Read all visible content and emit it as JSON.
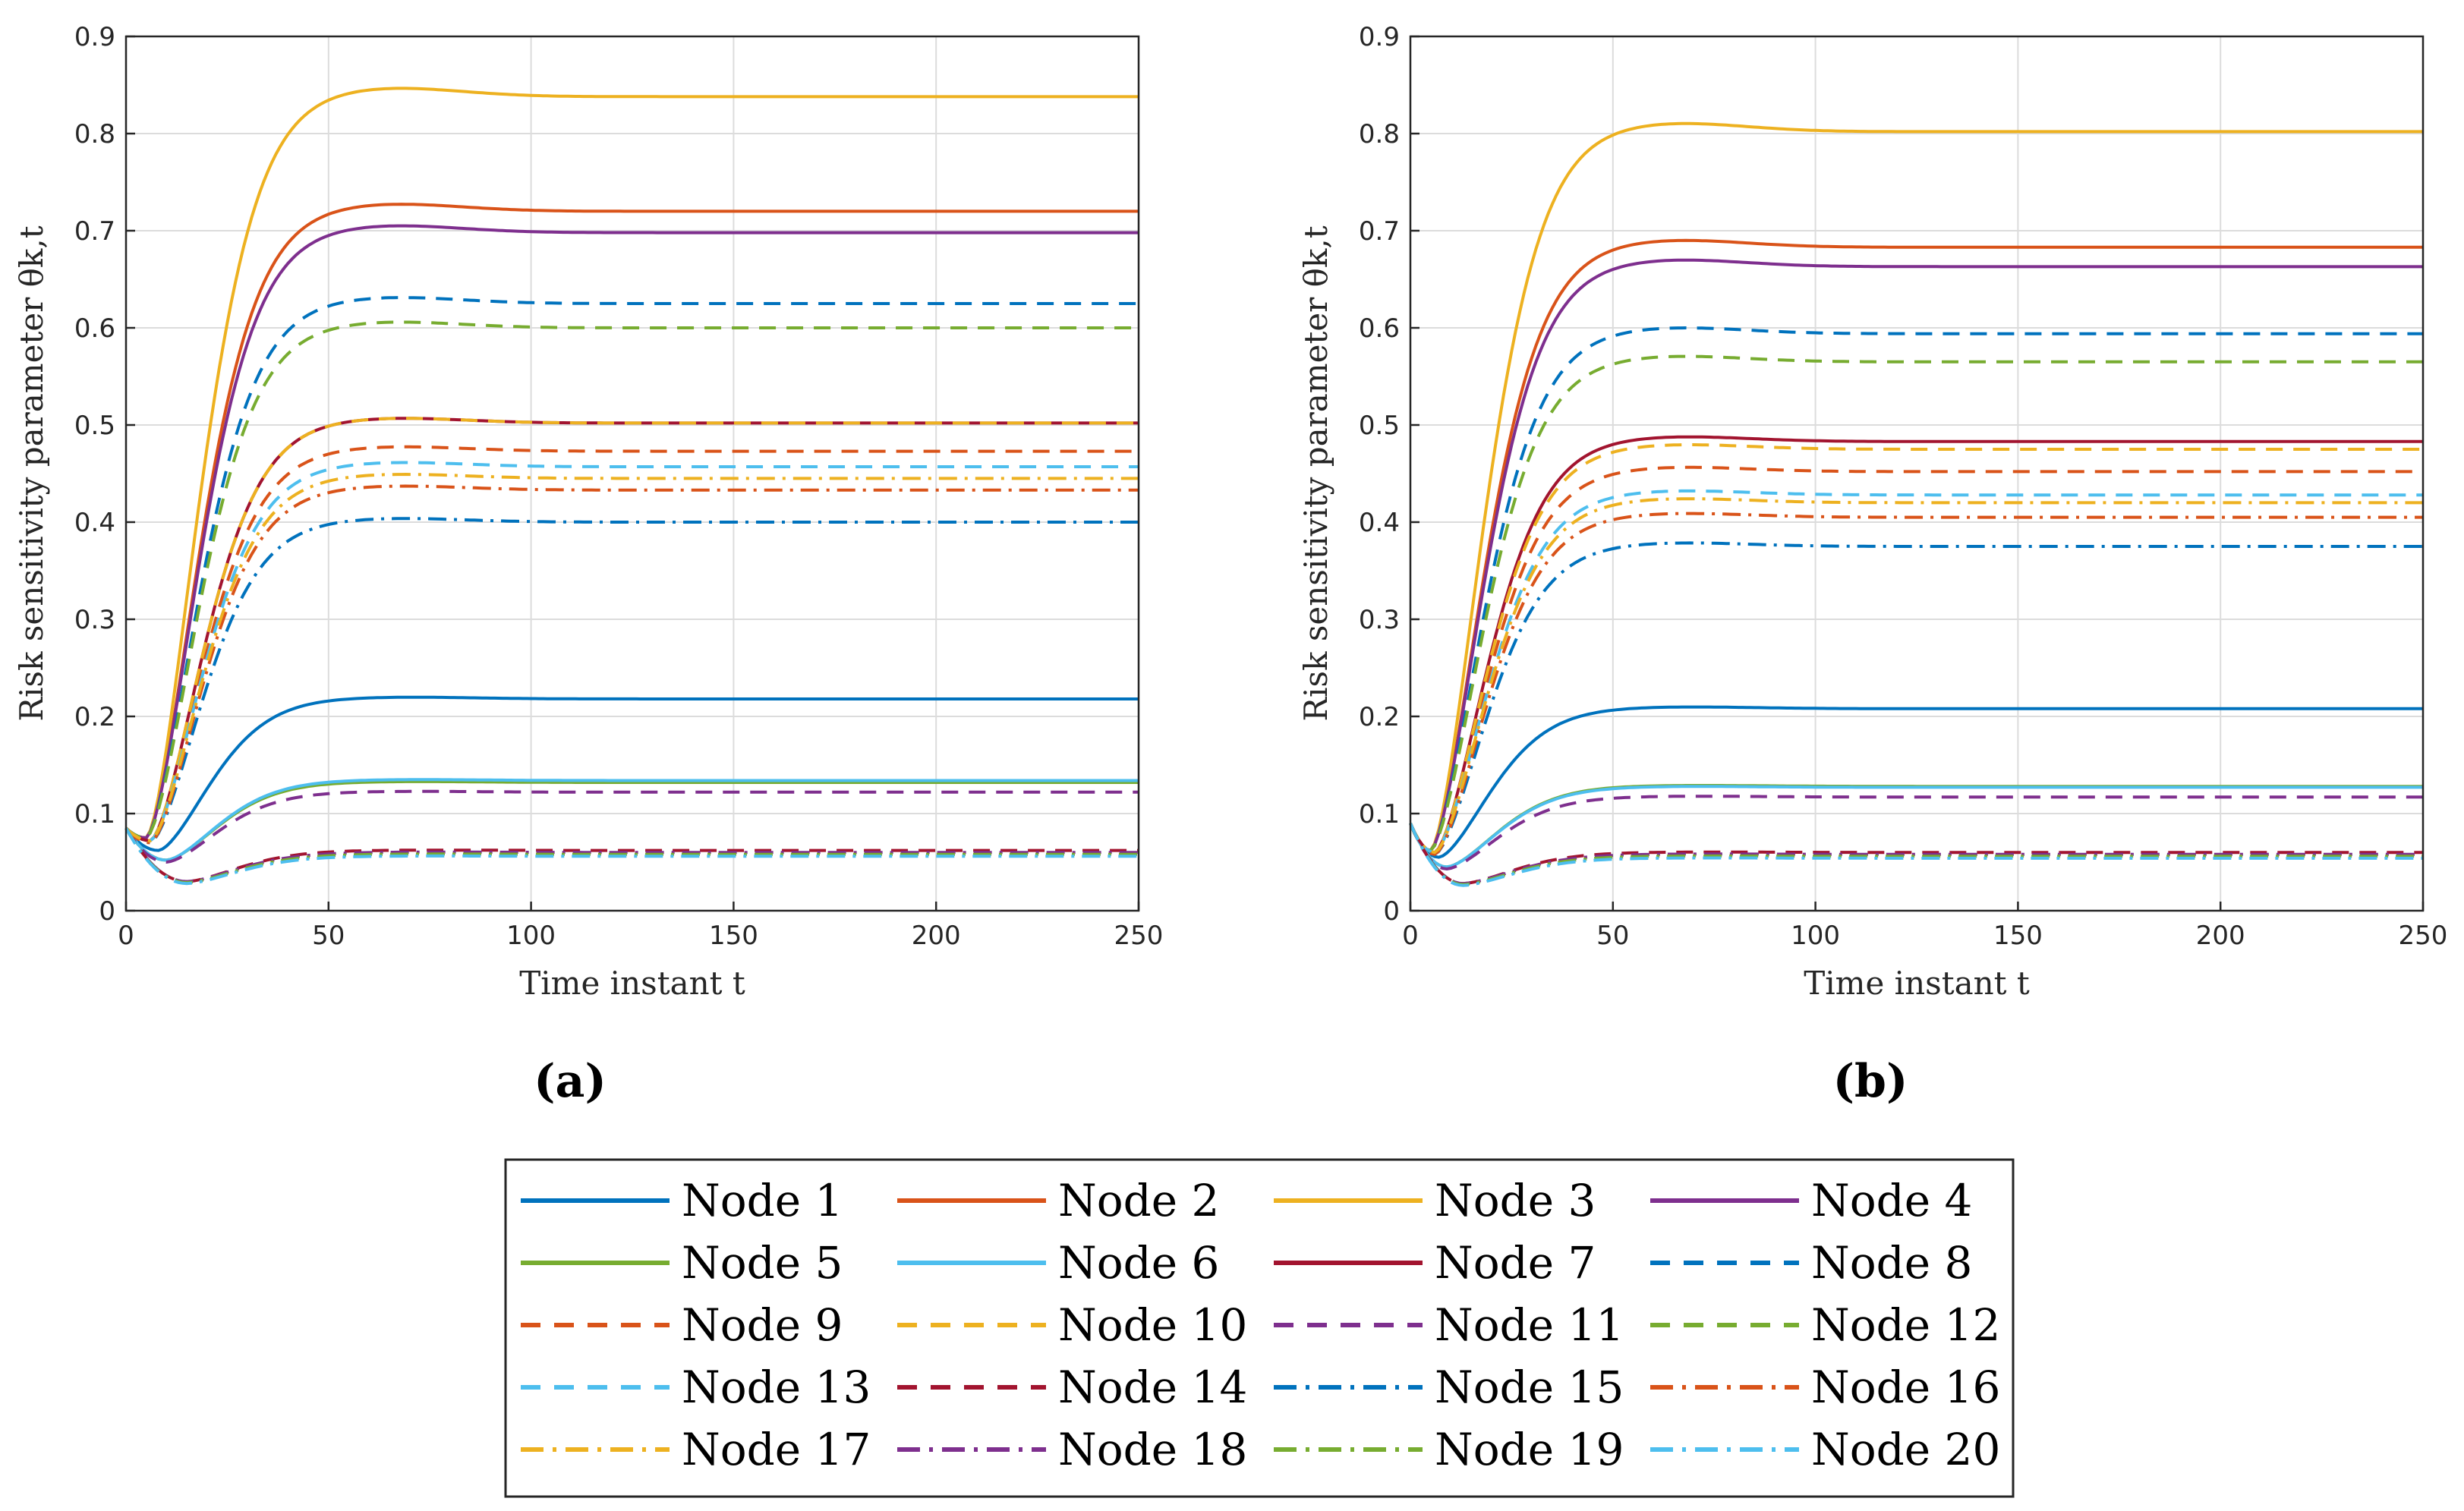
{
  "chart_data": [
    {
      "type": "line",
      "panel_label": "(a)",
      "xlabel": "Time instant t",
      "ylabel": "Risk sensitivity parameter θk,t",
      "xlim": [
        0,
        250
      ],
      "ylim": [
        0,
        0.9
      ],
      "xticks": [
        "0",
        "50",
        "100",
        "150",
        "200",
        "250"
      ],
      "yticks": [
        "0",
        "0.1",
        "0.2",
        "0.3",
        "0.4",
        "0.5",
        "0.6",
        "0.7",
        "0.8",
        "0.9"
      ],
      "grid": true,
      "initial_value": 0.085,
      "series": [
        {
          "name": "Node 1",
          "final": 0.218,
          "min": 0.062,
          "t_min": 8
        },
        {
          "name": "Node 2",
          "final": 0.72,
          "min": 0.075,
          "t_min": 5
        },
        {
          "name": "Node 3",
          "final": 0.838,
          "min": 0.075,
          "t_min": 5
        },
        {
          "name": "Node 4",
          "final": 0.698,
          "min": 0.075,
          "t_min": 5
        },
        {
          "name": "Node 5",
          "final": 0.132,
          "min": 0.052,
          "t_min": 10
        },
        {
          "name": "Node 6",
          "final": 0.134,
          "min": 0.052,
          "t_min": 10
        },
        {
          "name": "Node 7",
          "final": 0.502,
          "min": 0.072,
          "t_min": 6
        },
        {
          "name": "Node 8",
          "final": 0.625,
          "min": 0.075,
          "t_min": 5
        },
        {
          "name": "Node 9",
          "final": 0.473,
          "min": 0.072,
          "t_min": 6
        },
        {
          "name": "Node 10",
          "final": 0.502,
          "min": 0.072,
          "t_min": 6
        },
        {
          "name": "Node 11",
          "final": 0.122,
          "min": 0.05,
          "t_min": 10
        },
        {
          "name": "Node 12",
          "final": 0.6,
          "min": 0.075,
          "t_min": 5
        },
        {
          "name": "Node 13",
          "final": 0.457,
          "min": 0.072,
          "t_min": 6
        },
        {
          "name": "Node 14",
          "final": 0.062,
          "min": 0.03,
          "t_min": 15
        },
        {
          "name": "Node 15",
          "final": 0.4,
          "min": 0.07,
          "t_min": 6
        },
        {
          "name": "Node 16",
          "final": 0.433,
          "min": 0.07,
          "t_min": 6
        },
        {
          "name": "Node 17",
          "final": 0.445,
          "min": 0.072,
          "t_min": 6
        },
        {
          "name": "Node 18",
          "final": 0.06,
          "min": 0.03,
          "t_min": 15
        },
        {
          "name": "Node 19",
          "final": 0.058,
          "min": 0.029,
          "t_min": 15
        },
        {
          "name": "Node 20",
          "final": 0.056,
          "min": 0.028,
          "t_min": 15
        }
      ]
    },
    {
      "type": "line",
      "panel_label": "(b)",
      "xlabel": "Time instant t",
      "ylabel": "Risk sensitivity parameter θk,t",
      "xlim": [
        0,
        250
      ],
      "ylim": [
        0,
        0.9
      ],
      "xticks": [
        "0",
        "50",
        "100",
        "150",
        "200",
        "250"
      ],
      "yticks": [
        "0",
        "0.1",
        "0.2",
        "0.3",
        "0.4",
        "0.5",
        "0.6",
        "0.7",
        "0.8",
        "0.9"
      ],
      "grid": true,
      "initial_value": 0.09,
      "series": [
        {
          "name": "Node 1",
          "final": 0.208,
          "min": 0.055,
          "t_min": 7
        },
        {
          "name": "Node 2",
          "final": 0.683,
          "min": 0.062,
          "t_min": 5
        },
        {
          "name": "Node 3",
          "final": 0.802,
          "min": 0.062,
          "t_min": 5
        },
        {
          "name": "Node 4",
          "final": 0.663,
          "min": 0.062,
          "t_min": 5
        },
        {
          "name": "Node 5",
          "final": 0.128,
          "min": 0.045,
          "t_min": 9
        },
        {
          "name": "Node 6",
          "final": 0.127,
          "min": 0.045,
          "t_min": 9
        },
        {
          "name": "Node 7",
          "final": 0.483,
          "min": 0.06,
          "t_min": 6
        },
        {
          "name": "Node 8",
          "final": 0.594,
          "min": 0.062,
          "t_min": 5
        },
        {
          "name": "Node 9",
          "final": 0.452,
          "min": 0.06,
          "t_min": 6
        },
        {
          "name": "Node 10",
          "final": 0.475,
          "min": 0.06,
          "t_min": 6
        },
        {
          "name": "Node 11",
          "final": 0.117,
          "min": 0.043,
          "t_min": 9
        },
        {
          "name": "Node 12",
          "final": 0.565,
          "min": 0.062,
          "t_min": 5
        },
        {
          "name": "Node 13",
          "final": 0.428,
          "min": 0.06,
          "t_min": 6
        },
        {
          "name": "Node 14",
          "final": 0.06,
          "min": 0.028,
          "t_min": 13
        },
        {
          "name": "Node 15",
          "final": 0.375,
          "min": 0.058,
          "t_min": 6
        },
        {
          "name": "Node 16",
          "final": 0.405,
          "min": 0.058,
          "t_min": 6
        },
        {
          "name": "Node 17",
          "final": 0.42,
          "min": 0.06,
          "t_min": 6
        },
        {
          "name": "Node 18",
          "final": 0.058,
          "min": 0.028,
          "t_min": 13
        },
        {
          "name": "Node 19",
          "final": 0.056,
          "min": 0.027,
          "t_min": 13
        },
        {
          "name": "Node 20",
          "final": 0.054,
          "min": 0.026,
          "t_min": 13
        }
      ]
    }
  ],
  "legend": {
    "entries": [
      {
        "name": "Node 1",
        "color": "#0072BD",
        "style": "solid"
      },
      {
        "name": "Node 2",
        "color": "#D95319",
        "style": "solid"
      },
      {
        "name": "Node 3",
        "color": "#EDB120",
        "style": "solid"
      },
      {
        "name": "Node 4",
        "color": "#7E2F8E",
        "style": "solid"
      },
      {
        "name": "Node 5",
        "color": "#77AC30",
        "style": "solid"
      },
      {
        "name": "Node 6",
        "color": "#4DBEEE",
        "style": "solid"
      },
      {
        "name": "Node 7",
        "color": "#A2142F",
        "style": "solid"
      },
      {
        "name": "Node 8",
        "color": "#0072BD",
        "style": "dashed"
      },
      {
        "name": "Node 9",
        "color": "#D95319",
        "style": "dashed"
      },
      {
        "name": "Node 10",
        "color": "#EDB120",
        "style": "dashed"
      },
      {
        "name": "Node 11",
        "color": "#7E2F8E",
        "style": "dashed"
      },
      {
        "name": "Node 12",
        "color": "#77AC30",
        "style": "dashed"
      },
      {
        "name": "Node 13",
        "color": "#4DBEEE",
        "style": "dashed"
      },
      {
        "name": "Node 14",
        "color": "#A2142F",
        "style": "dashed"
      },
      {
        "name": "Node 15",
        "color": "#0072BD",
        "style": "dashdot"
      },
      {
        "name": "Node 16",
        "color": "#D95319",
        "style": "dashdot"
      },
      {
        "name": "Node 17",
        "color": "#EDB120",
        "style": "dashdot"
      },
      {
        "name": "Node 18",
        "color": "#7E2F8E",
        "style": "dashdot"
      },
      {
        "name": "Node 19",
        "color": "#77AC30",
        "style": "dashdot"
      },
      {
        "name": "Node 20",
        "color": "#4DBEEE",
        "style": "dashdot"
      }
    ]
  }
}
